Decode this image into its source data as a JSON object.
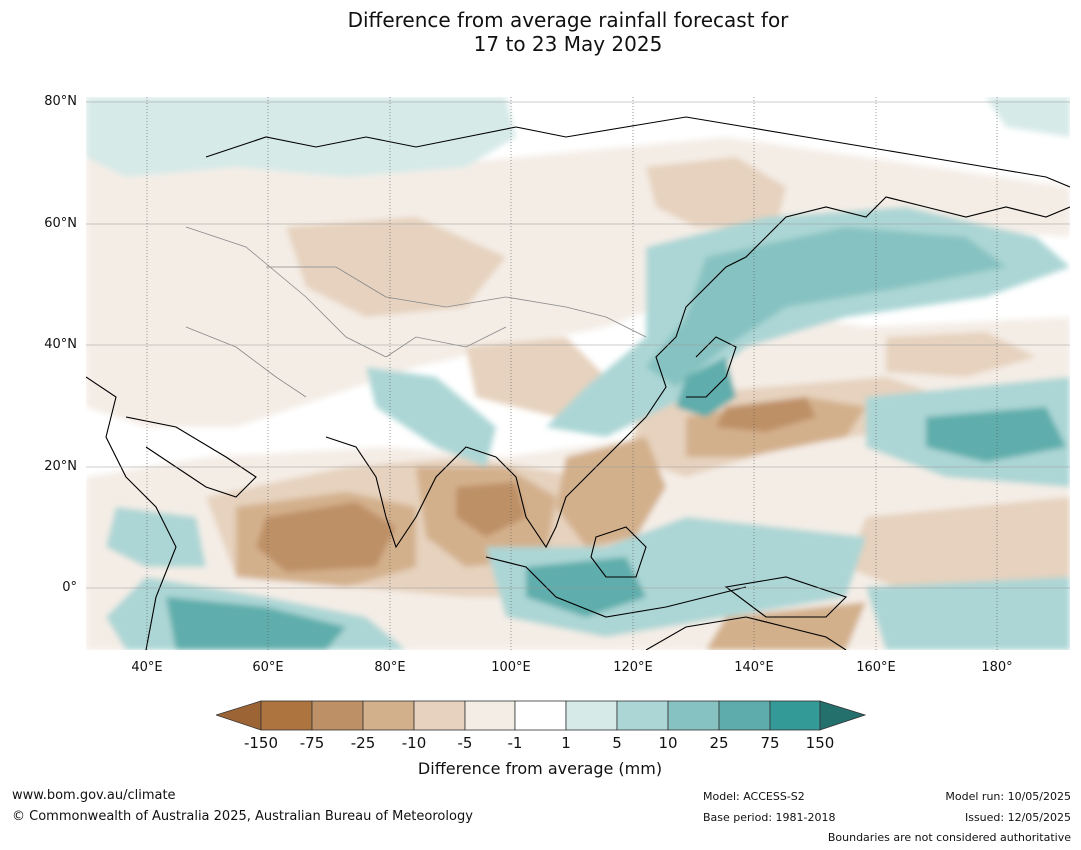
{
  "title": {
    "line1": "Difference from average rainfall forecast for",
    "line2": "17 to 23 May 2025"
  },
  "map": {
    "lat_labels": [
      "80°N",
      "60°N",
      "40°N",
      "20°N",
      "0°"
    ],
    "lon_labels": [
      "40°E",
      "60°E",
      "80°E",
      "100°E",
      "120°E",
      "140°E",
      "160°E",
      "180°"
    ],
    "extent": {
      "lon_min": 30,
      "lon_max": 192,
      "lat_min": -10,
      "lat_max": 81
    }
  },
  "colorbar": {
    "title": "Difference from average (mm)",
    "bounds": [
      "-150",
      "-75",
      "-25",
      "-10",
      "-5",
      "-1",
      "1",
      "5",
      "10",
      "25",
      "75",
      "150"
    ],
    "colors": [
      "#9c6434",
      "#ad7440",
      "#be9066",
      "#d3b08c",
      "#e6d2be",
      "#f4ede6",
      "#ffffff",
      "#d6eae8",
      "#acd6d5",
      "#86c2c1",
      "#5eadac",
      "#339a97",
      "#23706d"
    ]
  },
  "footer": {
    "website": "www.bom.gov.au/climate",
    "copyright": "© Commonwealth of Australia 2025, Australian Bureau of Meteorology",
    "model": "Model: ACCESS-S2",
    "base_period": "Base period: 1981-2018",
    "model_run": "Model run: 10/05/2025",
    "issued": "Issued: 12/05/2025",
    "disclaimer": "Boundaries are not considered authoritative"
  }
}
